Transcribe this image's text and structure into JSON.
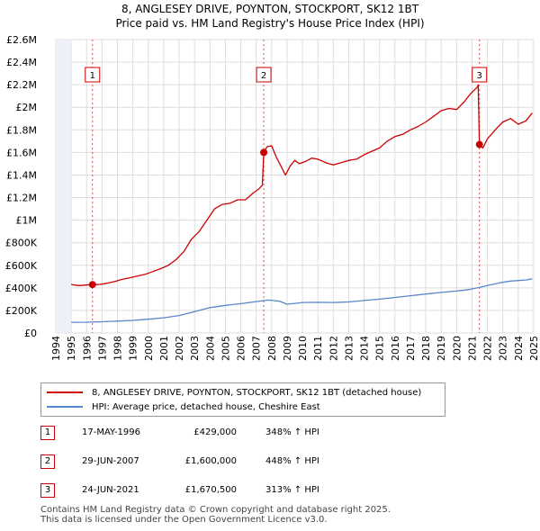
{
  "header": {
    "title": "8, ANGLESEY DRIVE, POYNTON, STOCKPORT, SK12 1BT",
    "subtitle": "Price paid vs. HM Land Registry's House Price Index (HPI)"
  },
  "chart_data": {
    "type": "line",
    "title": "8, ANGLESEY DRIVE, POYNTON, STOCKPORT, SK12 1BT",
    "subtitle": "Price paid vs. HM Land Registry's House Price Index (HPI)",
    "xlabel": "",
    "ylabel": "",
    "xlim": [
      1994,
      2025
    ],
    "ylim": [
      0,
      2600000
    ],
    "grid": true,
    "x_ticks": [
      "1994",
      "1995",
      "1996",
      "1997",
      "1998",
      "1999",
      "2000",
      "2001",
      "2002",
      "2003",
      "2004",
      "2005",
      "2006",
      "2007",
      "2008",
      "2009",
      "2010",
      "2011",
      "2012",
      "2013",
      "2014",
      "2015",
      "2016",
      "2017",
      "2018",
      "2019",
      "2020",
      "2021",
      "2022",
      "2023",
      "2024",
      "2025"
    ],
    "y_ticks": [
      {
        "value": 0,
        "label": "£0"
      },
      {
        "value": 200000,
        "label": "£200K"
      },
      {
        "value": 400000,
        "label": "£400K"
      },
      {
        "value": 600000,
        "label": "£600K"
      },
      {
        "value": 800000,
        "label": "£800K"
      },
      {
        "value": 1000000,
        "label": "£1M"
      },
      {
        "value": 1200000,
        "label": "£1.2M"
      },
      {
        "value": 1400000,
        "label": "£1.4M"
      },
      {
        "value": 1600000,
        "label": "£1.6M"
      },
      {
        "value": 1800000,
        "label": "£1.8M"
      },
      {
        "value": 2000000,
        "label": "£2M"
      },
      {
        "value": 2200000,
        "label": "£2.2M"
      },
      {
        "value": 2400000,
        "label": "£2.4M"
      },
      {
        "value": 2600000,
        "label": "£2.6M"
      }
    ],
    "series": [
      {
        "name": "8, ANGLESEY DRIVE, POYNTON, STOCKPORT, SK12 1BT (detached house)",
        "color": "#cc0000",
        "x": [
          1995.0,
          1995.5,
          1996.0,
          1996.38,
          1996.8,
          1997.3,
          1997.8,
          1998.3,
          1998.8,
          1999.3,
          1999.8,
          2000.3,
          2000.8,
          2001.3,
          2001.8,
          2002.3,
          2002.8,
          2003.3,
          2003.8,
          2004.3,
          2004.8,
          2005.3,
          2005.8,
          2006.3,
          2006.8,
          2007.2,
          2007.4,
          2007.49,
          2007.7,
          2008.0,
          2008.3,
          2008.6,
          2008.9,
          2009.2,
          2009.5,
          2009.8,
          2010.2,
          2010.6,
          2011.0,
          2011.5,
          2012.0,
          2012.5,
          2013.0,
          2013.5,
          2014.0,
          2014.5,
          2015.0,
          2015.5,
          2016.0,
          2016.5,
          2017.0,
          2017.5,
          2018.0,
          2018.5,
          2019.0,
          2019.5,
          2020.0,
          2020.5,
          2020.9,
          2021.2,
          2021.35,
          2021.4,
          2021.48,
          2021.7,
          2022.0,
          2022.5,
          2023.0,
          2023.5,
          2024.0,
          2024.5,
          2024.9
        ],
        "values": [
          430000,
          420000,
          425000,
          429000,
          430000,
          440000,
          455000,
          475000,
          490000,
          505000,
          520000,
          545000,
          570000,
          600000,
          650000,
          720000,
          830000,
          900000,
          1000000,
          1100000,
          1140000,
          1150000,
          1180000,
          1180000,
          1240000,
          1280000,
          1310000,
          1600000,
          1650000,
          1660000,
          1560000,
          1480000,
          1400000,
          1480000,
          1530000,
          1500000,
          1520000,
          1550000,
          1540000,
          1510000,
          1490000,
          1510000,
          1530000,
          1540000,
          1580000,
          1610000,
          1640000,
          1700000,
          1740000,
          1760000,
          1800000,
          1830000,
          1870000,
          1920000,
          1970000,
          1990000,
          1980000,
          2050000,
          2120000,
          2160000,
          2180000,
          2200000,
          1670500,
          1640000,
          1720000,
          1800000,
          1870000,
          1900000,
          1850000,
          1880000,
          1950000
        ]
      },
      {
        "name": "HPI: Average price, detached house, Cheshire East",
        "color": "#5588cc",
        "x": [
          1995.0,
          1996.0,
          1997.0,
          1998.0,
          1999.0,
          2000.0,
          2001.0,
          2002.0,
          2003.0,
          2004.0,
          2005.0,
          2006.0,
          2007.0,
          2007.8,
          2008.5,
          2009.0,
          2009.5,
          2010.0,
          2011.0,
          2012.0,
          2013.0,
          2014.0,
          2015.0,
          2016.0,
          2017.0,
          2018.0,
          2019.0,
          2020.0,
          2020.8,
          2021.5,
          2022.0,
          2022.8,
          2023.5,
          2024.0,
          2024.5,
          2024.9
        ],
        "values": [
          95000,
          96000,
          100000,
          105000,
          112000,
          122000,
          135000,
          155000,
          190000,
          225000,
          245000,
          260000,
          278000,
          292000,
          282000,
          255000,
          262000,
          270000,
          272000,
          270000,
          275000,
          288000,
          300000,
          315000,
          330000,
          345000,
          360000,
          372000,
          385000,
          405000,
          420000,
          445000,
          460000,
          465000,
          470000,
          480000
        ]
      }
    ],
    "sale_points": [
      {
        "label": "1",
        "x": 1996.38,
        "value": 429000
      },
      {
        "label": "2",
        "x": 2007.49,
        "value": 1600000
      },
      {
        "label": "3",
        "x": 2021.48,
        "value": 1670500
      }
    ],
    "legend_placement": "bottom"
  },
  "legend": {
    "property_label": "8, ANGLESEY DRIVE, POYNTON, STOCKPORT, SK12 1BT (detached house)",
    "hpi_label": "HPI: Average price, detached house, Cheshire East",
    "property_color": "#cc0000",
    "hpi_color": "#5588cc"
  },
  "sales": [
    {
      "num": "1",
      "date": "17-MAY-1996",
      "price": "£429,000",
      "pct": "348% ↑ HPI"
    },
    {
      "num": "2",
      "date": "29-JUN-2007",
      "price": "£1,600,000",
      "pct": "448% ↑ HPI"
    },
    {
      "num": "3",
      "date": "24-JUN-2021",
      "price": "£1,670,500",
      "pct": "313% ↑ HPI"
    }
  ],
  "footer": {
    "line1": "Contains HM Land Registry data © Crown copyright and database right 2025.",
    "line2": "This data is licensed under the Open Government Licence v3.0."
  }
}
